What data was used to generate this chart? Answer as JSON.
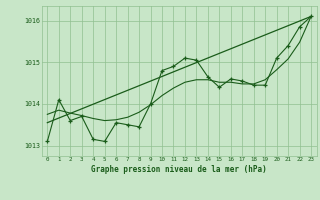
{
  "xlabel": "Graphe pression niveau de la mer (hPa)",
  "xlim": [
    -0.5,
    23.5
  ],
  "ylim": [
    1012.75,
    1016.35
  ],
  "yticks": [
    1013,
    1014,
    1015,
    1016
  ],
  "xticks": [
    0,
    1,
    2,
    3,
    4,
    5,
    6,
    7,
    8,
    9,
    10,
    11,
    12,
    13,
    14,
    15,
    16,
    17,
    18,
    19,
    20,
    21,
    22,
    23
  ],
  "bg_color": "#c8e6c8",
  "grid_color": "#90c090",
  "line_color": "#1a5c1a",
  "main_series": [
    1013.1,
    1014.1,
    1013.6,
    1013.7,
    1013.15,
    1013.1,
    1013.55,
    1013.5,
    1013.45,
    1014.0,
    1014.8,
    1014.9,
    1015.1,
    1015.05,
    1014.65,
    1014.4,
    1014.6,
    1014.55,
    1014.45,
    1014.45,
    1015.1,
    1015.4,
    1015.85,
    1016.1
  ],
  "trend_line_x": [
    0,
    23
  ],
  "trend_line_y": [
    1013.55,
    1016.1
  ],
  "smooth_series": [
    1013.75,
    1013.85,
    1013.78,
    1013.72,
    1013.65,
    1013.6,
    1013.62,
    1013.68,
    1013.8,
    1013.98,
    1014.2,
    1014.38,
    1014.52,
    1014.58,
    1014.58,
    1014.52,
    1014.52,
    1014.48,
    1014.48,
    1014.58,
    1014.82,
    1015.08,
    1015.48,
    1016.1
  ]
}
